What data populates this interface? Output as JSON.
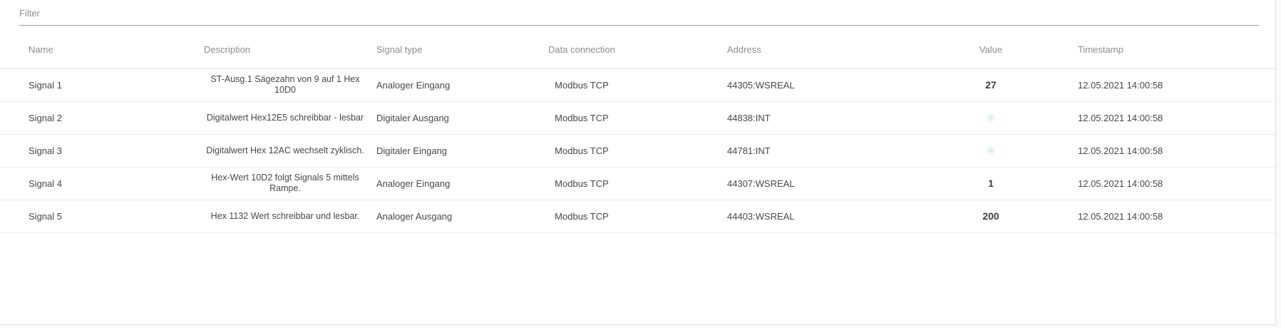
{
  "filter": {
    "placeholder": "Filter",
    "value": ""
  },
  "table": {
    "columns": [
      {
        "label": "Name"
      },
      {
        "label": "Description"
      },
      {
        "label": "Signal type"
      },
      {
        "label": "Data connection"
      },
      {
        "label": "Address"
      },
      {
        "label": "Value"
      },
      {
        "label": "Timestamp"
      }
    ],
    "rows": [
      {
        "name": "Signal 1",
        "description": "ST-Ausg.1 Sägezahn von 9 auf 1 Hex 10D0",
        "signal_type": "Analoger Eingang",
        "data_connection": "Modbus TCP",
        "address": "44305:WSREAL",
        "value": "27",
        "value_kind": "number",
        "timestamp": "12.05.2021 14:00:58"
      },
      {
        "name": "Signal 2",
        "description": "Digitalwert Hex12E5 schreibbar - lesbar",
        "signal_type": "Digitaler Ausgang",
        "data_connection": "Modbus TCP",
        "address": "44838:INT",
        "value": "on",
        "value_kind": "led",
        "timestamp": "12.05.2021 14:00:58"
      },
      {
        "name": "Signal 3",
        "description": "Digitalwert Hex 12AC wechselt zyklisch.",
        "signal_type": "Digitaler Eingang",
        "data_connection": "Modbus TCP",
        "address": "44781:INT",
        "value": "on",
        "value_kind": "led",
        "timestamp": "12.05.2021 14:00:58"
      },
      {
        "name": "Signal 4",
        "description": "Hex-Wert 10D2 folgt Signals 5 mittels Rampe.",
        "signal_type": "Analoger Eingang",
        "data_connection": "Modbus TCP",
        "address": "44307:WSREAL",
        "value": "1",
        "value_kind": "number",
        "timestamp": "12.05.2021 14:00:58"
      },
      {
        "name": "Signal 5",
        "description": "Hex 1132 Wert schreibbar und lesbar.",
        "signal_type": "Analoger Ausgang",
        "data_connection": "Modbus TCP",
        "address": "44403:WSREAL",
        "value": "200",
        "value_kind": "number",
        "timestamp": "12.05.2021 14:00:58"
      }
    ]
  },
  "colors": {
    "led_on": "#16a84f",
    "led_glow": "#2ebe69",
    "filter_underline": "#9c9c9c",
    "header_text": "#8d8d8d",
    "cell_text": "#474747"
  }
}
